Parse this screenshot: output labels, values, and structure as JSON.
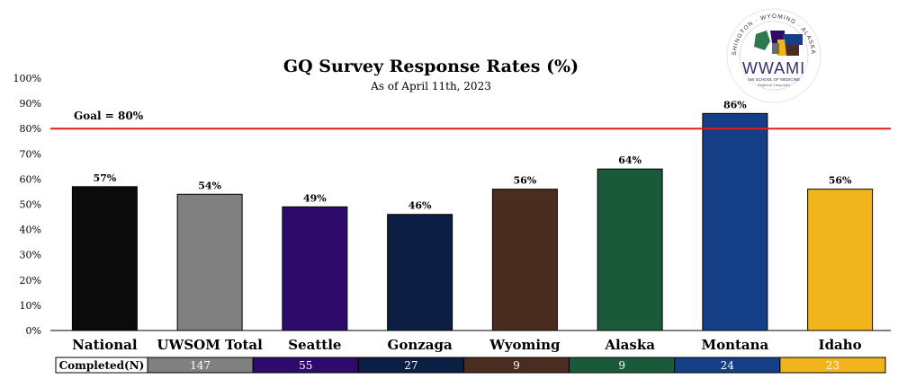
{
  "chart_data": {
    "type": "bar",
    "title": "GQ Survey Response Rates (%)",
    "subtitle": "As of April 11th, 2023",
    "categories": [
      "National",
      "UWSOM Total",
      "Seattle",
      "Gonzaga",
      "Wyoming",
      "Alaska",
      "Montana",
      "Idaho"
    ],
    "values": [
      57,
      54,
      49,
      46,
      56,
      64,
      86,
      56
    ],
    "data_labels": [
      "57%",
      "54%",
      "49%",
      "46%",
      "56%",
      "64%",
      "86%",
      "56%"
    ],
    "bar_colors": [
      "#0b0b0b",
      "#808080",
      "#2e0a6a",
      "#0d1e44",
      "#4a2c20",
      "#1a5a3a",
      "#143f86",
      "#f0b41c"
    ],
    "ylim": [
      0,
      100
    ],
    "yticks": [
      "0%",
      "10%",
      "20%",
      "30%",
      "40%",
      "50%",
      "60%",
      "70%",
      "80%",
      "90%",
      "100%"
    ],
    "goal": {
      "value": 80,
      "label": "Goal = 80%",
      "color": "#e31c1c"
    },
    "completed": {
      "label": "Completed(N)",
      "values": [
        "",
        "147",
        "55",
        "27",
        "9",
        "9",
        "24",
        "23"
      ]
    },
    "grid": false,
    "legend": "none"
  },
  "logo": {
    "name": "WWAMI",
    "ring_text": "IDAHO · WASHINGTON · WYOMING · ALASKA · MONTANA",
    "subtext": "UW SCHOOL OF MEDICINE",
    "subtext2": "Regional Campuses"
  }
}
